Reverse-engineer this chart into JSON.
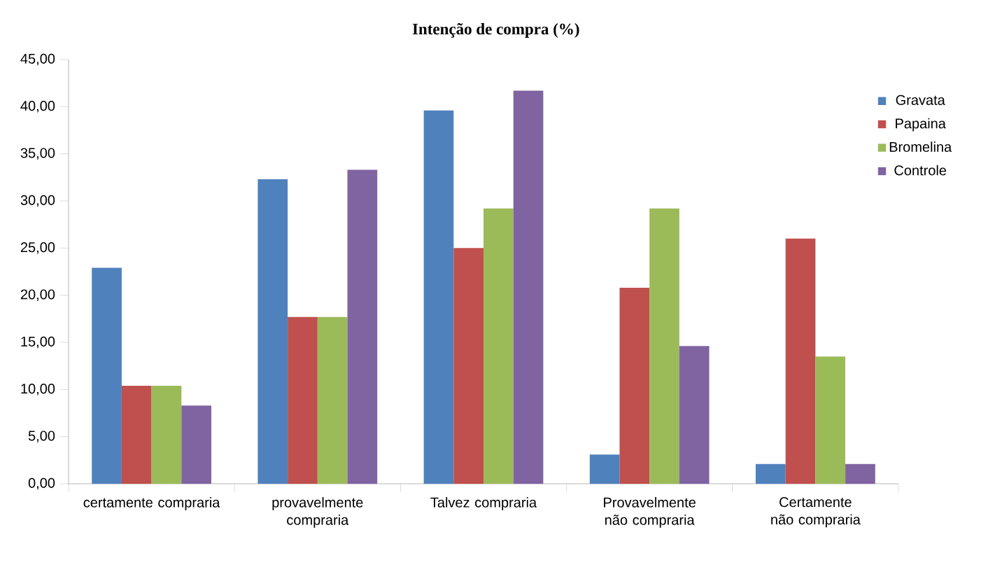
{
  "chart_data": {
    "type": "bar",
    "title": "Intenção de compra (%)",
    "categories": [
      "certamente compraria",
      "provavelmente compraria",
      "Talvez compraria",
      "Provavelmente não compraria",
      "Certamente não compraria"
    ],
    "series": [
      {
        "name": "Gravata",
        "color": "#4f81bd",
        "values": [
          22.9,
          32.3,
          39.6,
          3.1,
          2.1
        ]
      },
      {
        "name": "Papaina",
        "color": "#c0504d",
        "values": [
          10.4,
          17.7,
          25.0,
          20.8,
          26.0
        ]
      },
      {
        "name": "Bromelina",
        "color": "#9bbb59",
        "values": [
          10.4,
          17.7,
          29.2,
          29.2,
          13.5
        ]
      },
      {
        "name": "Controle",
        "color": "#8064a2",
        "values": [
          8.3,
          33.3,
          41.7,
          14.6,
          2.1
        ]
      }
    ],
    "ylim": [
      0,
      45
    ],
    "yticks": [
      {
        "value": 0,
        "label": "0,00"
      },
      {
        "value": 5,
        "label": "5,00"
      },
      {
        "value": 10,
        "label": "10,00"
      },
      {
        "value": 15,
        "label": "15,00"
      },
      {
        "value": 20,
        "label": "20,00"
      },
      {
        "value": 25,
        "label": "25,00"
      },
      {
        "value": 30,
        "label": "30,00"
      },
      {
        "value": 35,
        "label": "35,00"
      },
      {
        "value": 40,
        "label": "40,00"
      },
      {
        "value": 45,
        "label": "45,00"
      }
    ],
    "grid": false,
    "legend": "right"
  }
}
